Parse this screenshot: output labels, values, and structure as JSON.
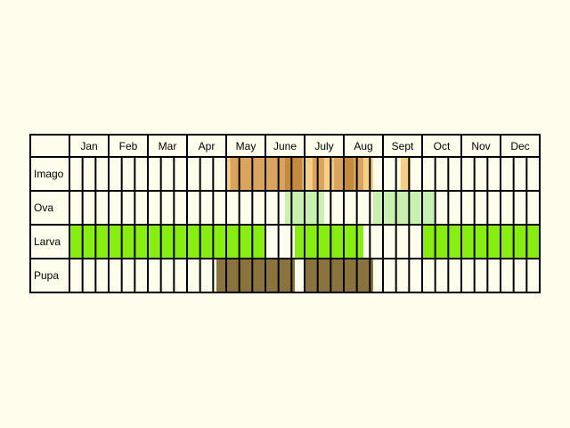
{
  "chart_data": {
    "type": "table",
    "title": "",
    "months": [
      "Jan",
      "Feb",
      "Mar",
      "Apr",
      "May",
      "June",
      "July",
      "Aug",
      "Sept",
      "Oct",
      "Nov",
      "Dec"
    ],
    "rows": [
      "Imago",
      "Ova",
      "Larva",
      "Pupa"
    ],
    "periods_per_month": 3,
    "colors": {
      "background": "#fffdeb",
      "imago_light": "#f5cf86",
      "imago_mid": "#dba45e",
      "imago_dark": "#c48a3d",
      "ova": "#c8f0b0",
      "larva": "#88ee11",
      "pupa": "#8b7340"
    },
    "bands": [
      {
        "row": "Imago",
        "start": 4.0,
        "end": 4.1,
        "color": "imago_light"
      },
      {
        "row": "Imago",
        "start": 4.1,
        "end": 5.0,
        "color": "imago_mid"
      },
      {
        "row": "Imago",
        "start": 5.0,
        "end": 5.5,
        "color": "imago_mid"
      },
      {
        "row": "Imago",
        "start": 5.5,
        "end": 5.95,
        "color": "imago_dark"
      },
      {
        "row": "Imago",
        "start": 5.95,
        "end": 6.2,
        "color": "imago_light"
      },
      {
        "row": "Imago",
        "start": 6.2,
        "end": 6.5,
        "color": "imago_mid"
      },
      {
        "row": "Imago",
        "start": 6.5,
        "end": 6.75,
        "color": "imago_light"
      },
      {
        "row": "Imago",
        "start": 6.75,
        "end": 7.0,
        "color": "imago_mid"
      },
      {
        "row": "Imago",
        "start": 7.0,
        "end": 7.25,
        "color": "imago_dark"
      },
      {
        "row": "Imago",
        "start": 7.25,
        "end": 7.5,
        "color": "imago_mid"
      },
      {
        "row": "Imago",
        "start": 7.5,
        "end": 7.75,
        "color": "imago_light"
      },
      {
        "row": "Imago",
        "start": 8.45,
        "end": 8.7,
        "color": "imago_light"
      },
      {
        "row": "Ova",
        "start": 5.5,
        "end": 6.5,
        "color": "ova"
      },
      {
        "row": "Ova",
        "start": 7.75,
        "end": 9.3,
        "color": "ova"
      },
      {
        "row": "Larva",
        "start": 0.0,
        "end": 5.0,
        "color": "larva"
      },
      {
        "row": "Larva",
        "start": 5.75,
        "end": 7.5,
        "color": "larva"
      },
      {
        "row": "Larva",
        "start": 9.0,
        "end": 12.0,
        "color": "larva"
      },
      {
        "row": "Pupa",
        "start": 3.75,
        "end": 5.75,
        "color": "pupa"
      },
      {
        "row": "Pupa",
        "start": 6.0,
        "end": 7.75,
        "color": "pupa"
      }
    ]
  }
}
